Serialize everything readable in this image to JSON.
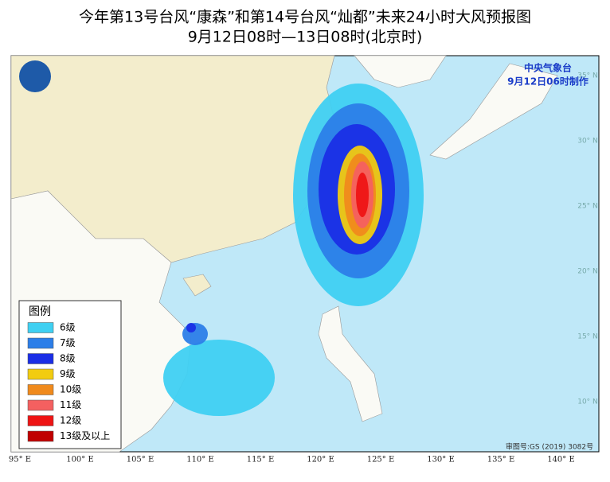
{
  "title": "今年第13号台风“康森”和第14号台风“灿都”未来24小时大风预报图",
  "subtitle": "9月12日08时—13日08时(北京时)",
  "agency": "中央气象台",
  "issued": "9月12日06时制作",
  "approval_number": "审图号:GS (2019) 3082号",
  "legend": {
    "title": "图例",
    "items": [
      {
        "label": "6级",
        "color": "#3fd0f2"
      },
      {
        "label": "7级",
        "color": "#2c7ee8"
      },
      {
        "label": "8级",
        "color": "#1a2ee6"
      },
      {
        "label": "9级",
        "color": "#f2cc10"
      },
      {
        "label": "10级",
        "color": "#f08a1c"
      },
      {
        "label": "11级",
        "color": "#f46060"
      },
      {
        "label": "12级",
        "color": "#ee1414"
      },
      {
        "label": "13级及以上",
        "color": "#c00000"
      }
    ]
  },
  "longitude_labels": [
    "95° E",
    "100° E",
    "105° E",
    "110° E",
    "115° E",
    "120° E",
    "125° E",
    "130° E",
    "135° E",
    "140° E"
  ],
  "latitude_labels": [
    "10° N",
    "15° N",
    "20° N",
    "25° N",
    "30° N",
    "35° N"
  ]
}
